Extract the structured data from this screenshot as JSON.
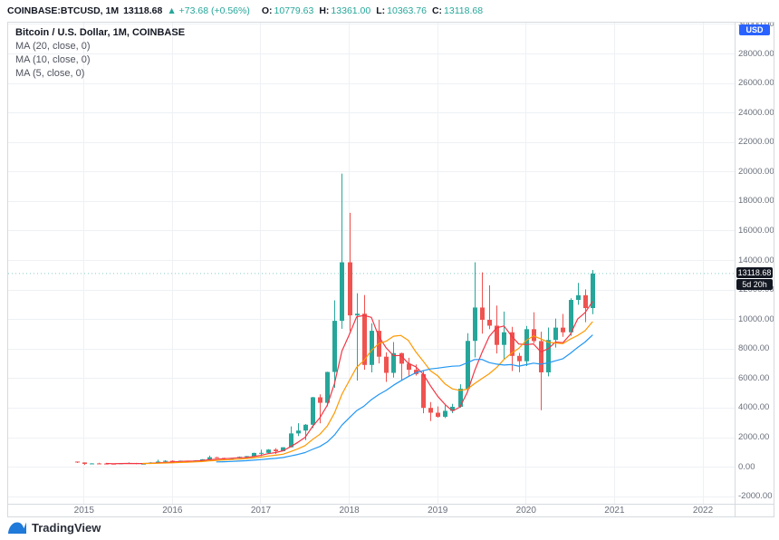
{
  "header": {
    "symbol_title": "COINBASE:BTCUSD, 1M",
    "last_price": "13118.68",
    "change_text": "▲ +73.68 (+0.56%)",
    "ohlc": [
      {
        "label": "O:",
        "value": "10779.63"
      },
      {
        "label": "H:",
        "value": "13361.00"
      },
      {
        "label": "L:",
        "value": "10363.76"
      },
      {
        "label": "C:",
        "value": "13118.68"
      }
    ]
  },
  "legend": {
    "title": "Bitcoin / U.S. Dollar, 1M, COINBASE"
  },
  "price_axis": {
    "unit_label": "USD",
    "last_price_label": "13118.68",
    "countdown_label": "5d 20h"
  },
  "footer": {
    "brand": "TradingView"
  },
  "chart_data": {
    "type": "candlestick",
    "title": "Bitcoin / U.S. Dollar, 1M, COINBASE",
    "symbol": "COINBASE:BTCUSD",
    "interval": "1M",
    "up_color": "#26a69a",
    "down_color": "#ef5350",
    "grid_color": "#eef1f5",
    "ylim": [
      -2480,
      30120
    ],
    "xlim_months": [
      -9.3,
      89.3
    ],
    "y_ticks": [
      -2000,
      0,
      2000,
      4000,
      6000,
      8000,
      10000,
      12000,
      14000,
      16000,
      18000,
      20000,
      22000,
      24000,
      26000,
      28000,
      30000
    ],
    "x_axis": {
      "labels": [
        "2015",
        "2016",
        "2017",
        "2018",
        "2019",
        "2020",
        "2021",
        "2022"
      ],
      "label_month_index": [
        1,
        13,
        25,
        37,
        49,
        61,
        73,
        85
      ]
    },
    "moving_averages": [
      {
        "label": "MA (20, close, 0)",
        "period": 20,
        "color": "#2196f3"
      },
      {
        "label": "MA (10, close, 0)",
        "period": 10,
        "color": "#ff9800"
      },
      {
        "label": "MA (5, close, 0)",
        "period": 5,
        "color": "#f23645"
      }
    ],
    "candles": [
      [
        "2014-12",
        378,
        384,
        285,
        320
      ],
      [
        "2015-01",
        320,
        321,
        152,
        218
      ],
      [
        "2015-02",
        218,
        265,
        210,
        254
      ],
      [
        "2015-03",
        254,
        300,
        236,
        244
      ],
      [
        "2015-04",
        244,
        262,
        213,
        236
      ],
      [
        "2015-05",
        236,
        249,
        227,
        230
      ],
      [
        "2015-06",
        230,
        268,
        219,
        263
      ],
      [
        "2015-07",
        263,
        318,
        250,
        284
      ],
      [
        "2015-08",
        284,
        288,
        198,
        230
      ],
      [
        "2015-09",
        230,
        248,
        223,
        236
      ],
      [
        "2015-10",
        236,
        334,
        235,
        314
      ],
      [
        "2015-11",
        314,
        504,
        301,
        377
      ],
      [
        "2015-12",
        377,
        469,
        346,
        430
      ],
      [
        "2016-01",
        430,
        463,
        351,
        369
      ],
      [
        "2016-02",
        369,
        441,
        366,
        437
      ],
      [
        "2016-03",
        437,
        439,
        398,
        416
      ],
      [
        "2016-04",
        416,
        467,
        412,
        452
      ],
      [
        "2016-05",
        452,
        547,
        442,
        531
      ],
      [
        "2016-06",
        531,
        781,
        516,
        673
      ],
      [
        "2016-07",
        673,
        706,
        603,
        624
      ],
      [
        "2016-08",
        624,
        639,
        465,
        575
      ],
      [
        "2016-09",
        575,
        629,
        565,
        610
      ],
      [
        "2016-10",
        610,
        721,
        607,
        700
      ],
      [
        "2016-11",
        700,
        755,
        678,
        745
      ],
      [
        "2016-12",
        745,
        982,
        740,
        964
      ],
      [
        "2017-01",
        964,
        1191,
        752,
        970
      ],
      [
        "2017-02",
        970,
        1220,
        918,
        1190
      ],
      [
        "2017-03",
        1190,
        1290,
        891,
        1080
      ],
      [
        "2017-04",
        1080,
        1347,
        1071,
        1347
      ],
      [
        "2017-05",
        1347,
        2760,
        1340,
        2286
      ],
      [
        "2017-06",
        2286,
        2980,
        2110,
        2480
      ],
      [
        "2017-07",
        2480,
        2920,
        1830,
        2875
      ],
      [
        "2017-08",
        2875,
        4763,
        2650,
        4735
      ],
      [
        "2017-09",
        4735,
        4930,
        2972,
        4360
      ],
      [
        "2017-10",
        4360,
        6470,
        4120,
        6450
      ],
      [
        "2017-11",
        6450,
        11300,
        5380,
        9916
      ],
      [
        "2017-12",
        9916,
        19891,
        9380,
        13880
      ],
      [
        "2018-01",
        13880,
        17234,
        9222,
        10285
      ],
      [
        "2018-02",
        10285,
        11786,
        5873,
        10397
      ],
      [
        "2018-03",
        10397,
        11660,
        6600,
        6926
      ],
      [
        "2018-04",
        6926,
        9745,
        6425,
        9240
      ],
      [
        "2018-05",
        9240,
        9990,
        7032,
        7485
      ],
      [
        "2018-06",
        7485,
        7780,
        5780,
        6390
      ],
      [
        "2018-07",
        6390,
        8480,
        6070,
        7727
      ],
      [
        "2018-08",
        7727,
        7760,
        5880,
        7011
      ],
      [
        "2018-09",
        7011,
        7412,
        6160,
        6597
      ],
      [
        "2018-10",
        6597,
        6960,
        6205,
        6308
      ],
      [
        "2018-11",
        6308,
        6560,
        3652,
        4017
      ],
      [
        "2018-12",
        4017,
        4410,
        3122,
        3689
      ],
      [
        "2019-01",
        3689,
        4110,
        3350,
        3414
      ],
      [
        "2019-02",
        3414,
        4190,
        3330,
        3816
      ],
      [
        "2019-03",
        3816,
        4290,
        3670,
        4092
      ],
      [
        "2019-04",
        4092,
        5620,
        4037,
        5320
      ],
      [
        "2019-05",
        5320,
        9074,
        5316,
        8555
      ],
      [
        "2019-06",
        8555,
        13880,
        7432,
        10817
      ],
      [
        "2019-07",
        10817,
        13200,
        9049,
        9984
      ],
      [
        "2019-08",
        9984,
        12325,
        9350,
        9587
      ],
      [
        "2019-09",
        9587,
        10949,
        7700,
        8284
      ],
      [
        "2019-10",
        8284,
        10540,
        7300,
        9140
      ],
      [
        "2019-11",
        9140,
        9505,
        6515,
        7540
      ],
      [
        "2019-12",
        7540,
        7743,
        6430,
        7180
      ],
      [
        "2020-01",
        7180,
        9570,
        6850,
        9350
      ],
      [
        "2020-02",
        9350,
        10500,
        8400,
        8543
      ],
      [
        "2020-03",
        8543,
        9180,
        3858,
        6424
      ],
      [
        "2020-04",
        6424,
        9460,
        6150,
        8620
      ],
      [
        "2020-05",
        8620,
        10070,
        8100,
        9454
      ],
      [
        "2020-06",
        9454,
        10380,
        8830,
        9138
      ],
      [
        "2020-07",
        9138,
        11440,
        8900,
        11333
      ],
      [
        "2020-08",
        11333,
        12486,
        11000,
        11651
      ],
      [
        "2020-09",
        11651,
        12050,
        9825,
        10776
      ],
      [
        "2020-10",
        10779.63,
        13361.0,
        10363.76,
        13118.68
      ]
    ]
  }
}
